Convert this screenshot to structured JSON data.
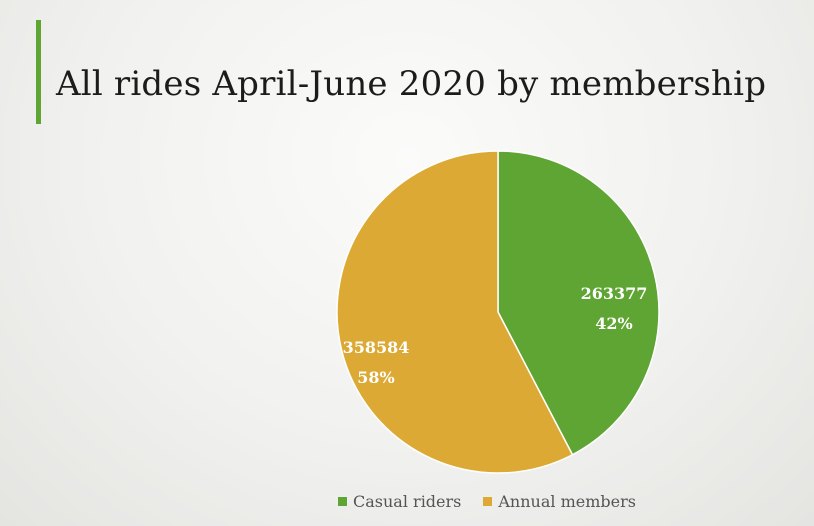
{
  "title": "All rides April-June 2020 by membership",
  "colors": {
    "accent": "#5fa533"
  },
  "chart_data": {
    "type": "pie",
    "title": "",
    "slices": [
      {
        "label": "Casual riders",
        "value": 263377,
        "percent": "42%",
        "color": "#5fa533"
      },
      {
        "label": "Annual members",
        "value": 358584,
        "percent": "58%",
        "color": "#dda935"
      }
    ],
    "start_angle": "12 o'clock",
    "direction": "clockwise",
    "legend": "bottom"
  }
}
